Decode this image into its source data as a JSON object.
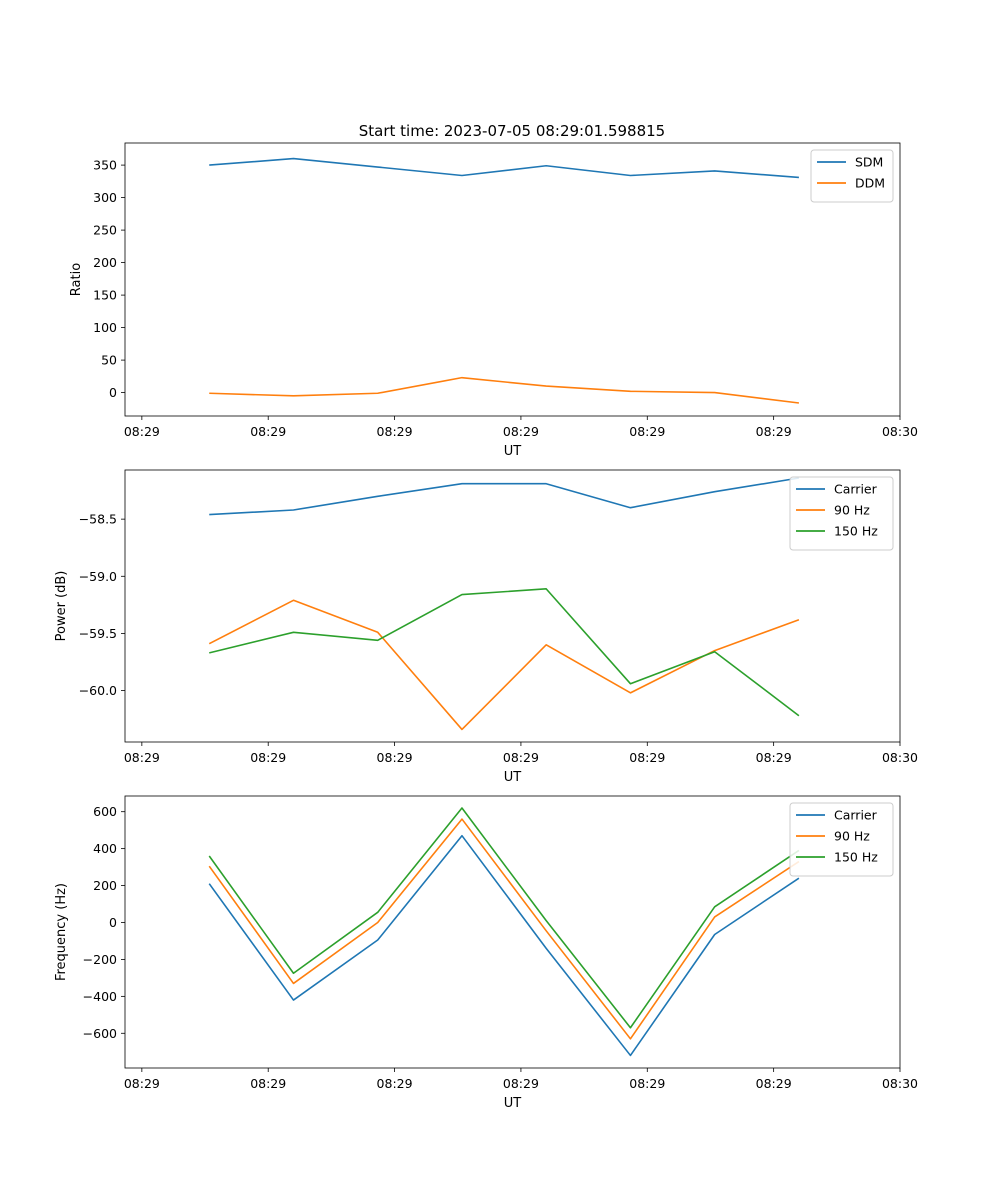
{
  "title": "Start time: 2023-07-05 08:29:01.598815",
  "chart_data": [
    {
      "type": "line",
      "title": "Start time: 2023-07-05 08:29:01.598815",
      "xlabel": "UT",
      "ylabel": "Ratio",
      "x": [
        1,
        2,
        3,
        4,
        5,
        6,
        7,
        8
      ],
      "xlim": [
        0,
        9.2
      ],
      "xticks": [
        0.2,
        1.7,
        3.2,
        4.7,
        6.2,
        7.7,
        9.2
      ],
      "xtick_labels": [
        "08:29",
        "08:29",
        "08:29",
        "08:29",
        "08:29",
        "08:29",
        "08:30"
      ],
      "ylim": [
        -36,
        384
      ],
      "yticks": [
        0,
        50,
        100,
        150,
        200,
        250,
        300,
        350
      ],
      "ytick_labels": [
        "0",
        "50",
        "100",
        "150",
        "200",
        "250",
        "300",
        "350"
      ],
      "legend": "top-right",
      "series": [
        {
          "name": "SDM",
          "color": "#1f77b4",
          "values": [
            350,
            360,
            347,
            334,
            349,
            334,
            341,
            331
          ]
        },
        {
          "name": "DDM",
          "color": "#ff7f0e",
          "values": [
            -1,
            -5,
            -1,
            23,
            10,
            2,
            0,
            -16
          ]
        }
      ]
    },
    {
      "type": "line",
      "xlabel": "UT",
      "ylabel": "Power (dB)",
      "x": [
        1,
        2,
        3,
        4,
        5,
        6,
        7,
        8
      ],
      "xlim": [
        0,
        9.2
      ],
      "xticks": [
        0.2,
        1.7,
        3.2,
        4.7,
        6.2,
        7.7,
        9.2
      ],
      "xtick_labels": [
        "08:29",
        "08:29",
        "08:29",
        "08:29",
        "08:29",
        "08:29",
        "08:30"
      ],
      "ylim": [
        -60.45,
        -58.07
      ],
      "yticks": [
        -58.5,
        -59.0,
        -59.5,
        -60.0
      ],
      "ytick_labels": [
        "−58.5",
        "−59.0",
        "−59.5",
        "−60.0"
      ],
      "legend": "top-right",
      "series": [
        {
          "name": "Carrier",
          "color": "#1f77b4",
          "values": [
            -58.46,
            -58.42,
            -58.3,
            -58.19,
            -58.19,
            -58.4,
            -58.26,
            -58.14
          ]
        },
        {
          "name": "90 Hz",
          "color": "#ff7f0e",
          "values": [
            -59.59,
            -59.21,
            -59.49,
            -60.34,
            -59.6,
            -60.02,
            -59.65,
            -59.38
          ]
        },
        {
          "name": "150 Hz",
          "color": "#2ca02c",
          "values": [
            -59.67,
            -59.49,
            -59.56,
            -59.16,
            -59.11,
            -59.94,
            -59.66,
            -60.22
          ]
        }
      ]
    },
    {
      "type": "line",
      "xlabel": "UT",
      "ylabel": "Frequency (Hz)",
      "x": [
        1,
        2,
        3,
        4,
        5,
        6,
        7,
        8
      ],
      "xlim": [
        0,
        9.2
      ],
      "xticks": [
        0.2,
        1.7,
        3.2,
        4.7,
        6.2,
        7.7,
        9.2
      ],
      "xtick_labels": [
        "08:29",
        "08:29",
        "08:29",
        "08:29",
        "08:29",
        "08:29",
        "08:30"
      ],
      "ylim": [
        -788,
        685
      ],
      "yticks": [
        -600,
        -400,
        -200,
        0,
        200,
        400,
        600
      ],
      "ytick_labels": [
        "−600",
        "−400",
        "−200",
        "0",
        "200",
        "400",
        "600"
      ],
      "legend": "top-right",
      "series": [
        {
          "name": "Carrier",
          "color": "#1f77b4",
          "values": [
            210,
            -420,
            -95,
            470,
            -140,
            -720,
            -65,
            240
          ]
        },
        {
          "name": "90 Hz",
          "color": "#ff7f0e",
          "values": [
            305,
            -330,
            0,
            560,
            -45,
            -630,
            30,
            330
          ]
        },
        {
          "name": "150 Hz",
          "color": "#2ca02c",
          "values": [
            360,
            -275,
            55,
            620,
            10,
            -570,
            85,
            390
          ]
        }
      ]
    }
  ]
}
